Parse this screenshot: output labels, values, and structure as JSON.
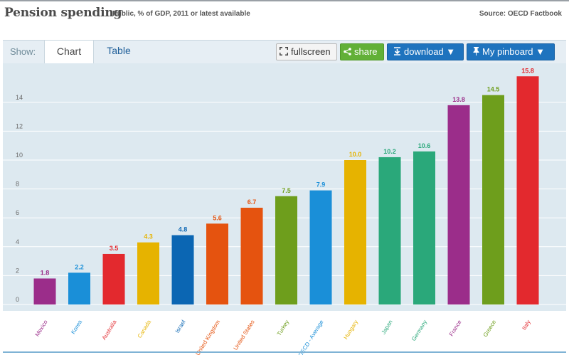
{
  "header": {
    "title": "Pension spending",
    "subtitle": "Public, % of GDP, 2011 or latest available",
    "source": "Source: OECD Factbook"
  },
  "toolbar": {
    "show_label": "Show:",
    "tabs": [
      {
        "label": "Chart",
        "active": true
      },
      {
        "label": "Table",
        "active": false
      }
    ],
    "fullscreen_label": "fullscreen",
    "share_label": "share",
    "download_label": "download ▼",
    "pinboard_label": "My pinboard ▼"
  },
  "chart_data": {
    "type": "bar",
    "title": "Pension spending",
    "subtitle": "Public, % of GDP, 2011 or latest available",
    "xlabel": "",
    "ylabel": "",
    "ylim": [
      0,
      16
    ],
    "yticks": [
      0,
      2,
      4,
      6,
      8,
      10,
      12,
      14
    ],
    "grid": true,
    "categories": [
      "Mexico",
      "Korea",
      "Australia",
      "Canada",
      "Israel",
      "United Kingdom",
      "United States",
      "Turkey",
      "OECD - Average",
      "Hungary",
      "Japan",
      "Germany",
      "France",
      "Greece",
      "Italy"
    ],
    "values": [
      1.8,
      2.2,
      3.5,
      4.3,
      4.8,
      5.6,
      6.7,
      7.5,
      7.9,
      10.0,
      10.2,
      10.6,
      13.8,
      14.5,
      15.8
    ],
    "value_labels": [
      "1.8",
      "2.2",
      "3.5",
      "4.3",
      "4.8",
      "5.6",
      "6.7",
      "7.5",
      "7.9",
      "10.0",
      "10.2",
      "10.6",
      "13.8",
      "14.5",
      "15.8"
    ],
    "colors": [
      "#9b2d8a",
      "#1a8fd8",
      "#e3292e",
      "#e6b300",
      "#0b66b3",
      "#e5530f",
      "#e5530f",
      "#6e9e1c",
      "#1a8fd8",
      "#e6b300",
      "#2aa87a",
      "#2aa87a",
      "#9b2d8a",
      "#6e9e1c",
      "#e3292e"
    ]
  }
}
